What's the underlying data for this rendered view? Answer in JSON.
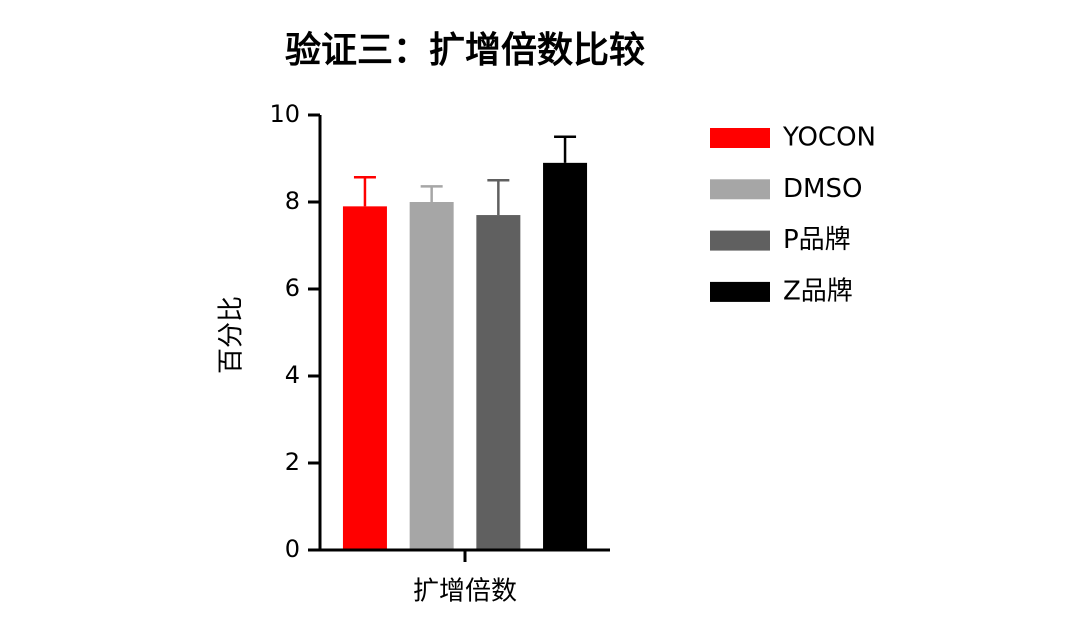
{
  "chart_data": {
    "type": "bar",
    "title": "验证三：扩增倍数比较",
    "ylabel": "百分比",
    "categories": [
      "扩增倍数"
    ],
    "series": [
      {
        "name": "YOCON",
        "color": "#ff0000",
        "values": [
          7.9
        ],
        "errors": [
          0.67
        ]
      },
      {
        "name": "DMSO",
        "color": "#a6a6a6",
        "values": [
          8.0
        ],
        "errors": [
          0.36
        ]
      },
      {
        "name": "P品牌",
        "color": "#606060",
        "values": [
          7.7
        ],
        "errors": [
          0.8
        ]
      },
      {
        "name": "Z品牌",
        "color": "#000000",
        "values": [
          8.9
        ],
        "errors": [
          0.6
        ]
      }
    ],
    "ylim": [
      0,
      10
    ],
    "yticks": [
      0,
      2,
      4,
      6,
      8,
      10
    ],
    "legend": "right"
  }
}
